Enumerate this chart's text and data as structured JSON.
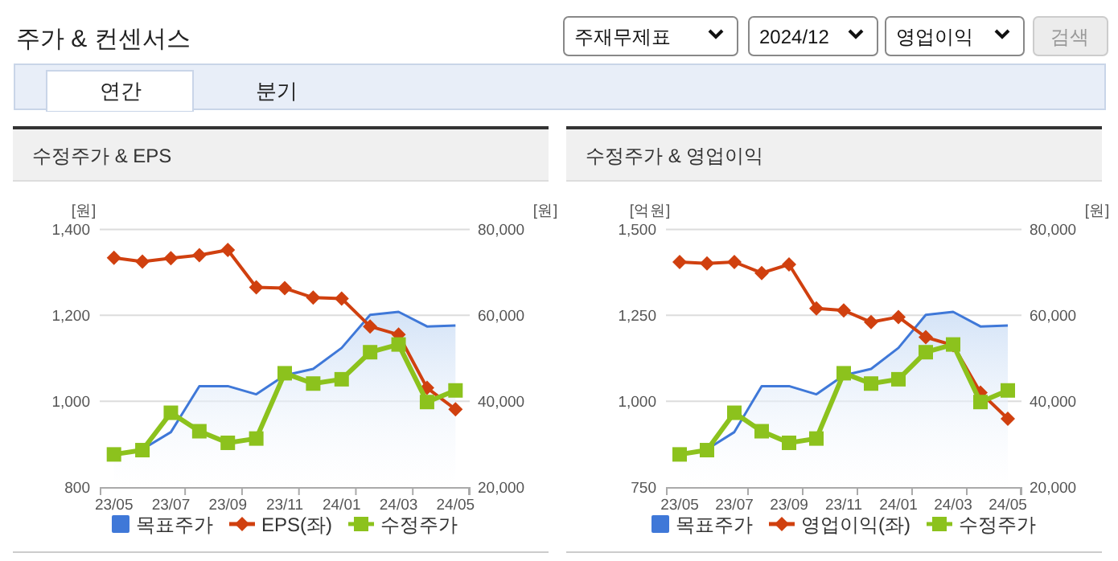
{
  "chart_data": [
    {
      "type": "other",
      "title": "주가 & 컨센서스",
      "annotations": [
        "주재무제표",
        "2024/12",
        "영업이익",
        "검색",
        "연간",
        "분기"
      ]
    },
    {
      "type": "line",
      "title": "수정주가 & EPS",
      "ylabel": "[원]",
      "y2label": "[원]",
      "categories": [
        "23/05",
        null,
        "23/07",
        null,
        "23/09",
        null,
        "23/11",
        null,
        "24/01",
        null,
        "24/03",
        null,
        "24/05"
      ],
      "ylim": [
        800,
        1400
      ],
      "yticks": [
        {
          "value": 800,
          "label": "800"
        },
        {
          "value": 1000,
          "label": "1,000"
        },
        {
          "value": 1200,
          "label": "1,200"
        },
        {
          "value": 1400,
          "label": "1,400"
        }
      ],
      "y2lim": [
        20000,
        80000
      ],
      "y2ticks": [
        {
          "value": 20000,
          "label": "20,000"
        },
        {
          "value": 40000,
          "label": "40,000"
        },
        {
          "value": 60000,
          "label": "60,000"
        },
        {
          "value": 80000,
          "label": "80,000"
        }
      ],
      "grid": "y",
      "legend": "bottom",
      "series": [
        {
          "name": "목표주가",
          "type": "area",
          "axis": "y2",
          "color": "#3f78d8",
          "marker": "none",
          "values": [
            27600,
            28800,
            32800,
            43500,
            43500,
            41600,
            46000,
            47500,
            52400,
            60100,
            60800,
            57400,
            57600
          ]
        },
        {
          "name": "EPS(좌)",
          "type": "line",
          "axis": "y",
          "color": "#d0400f",
          "marker": "diamond",
          "values": [
            1334,
            1325,
            1333,
            1340,
            1352,
            1265,
            1263,
            1241,
            1239,
            1174,
            1155,
            1031,
            981
          ]
        },
        {
          "name": "수정주가",
          "type": "line",
          "axis": "y2",
          "color": "#8cc21d",
          "marker": "square",
          "values": [
            27600,
            28600,
            37300,
            33000,
            30300,
            31300,
            46500,
            44100,
            45100,
            51400,
            53200,
            39800,
            42500
          ]
        }
      ]
    },
    {
      "type": "line",
      "title": "수정주가 & 영업이익",
      "ylabel": "[억원]",
      "y2label": "[원]",
      "categories": [
        "23/05",
        null,
        "23/07",
        null,
        "23/09",
        null,
        "23/11",
        null,
        "24/01",
        null,
        "24/03",
        null,
        "24/05"
      ],
      "ylim": [
        750,
        1500
      ],
      "yticks": [
        {
          "value": 750,
          "label": "750"
        },
        {
          "value": 1000,
          "label": "1,000"
        },
        {
          "value": 1250,
          "label": "1,250"
        },
        {
          "value": 1500,
          "label": "1,500"
        }
      ],
      "y2lim": [
        20000,
        80000
      ],
      "y2ticks": [
        {
          "value": 20000,
          "label": "20,000"
        },
        {
          "value": 40000,
          "label": "40,000"
        },
        {
          "value": 60000,
          "label": "60,000"
        },
        {
          "value": 80000,
          "label": "80,000"
        }
      ],
      "grid": "y",
      "legend": "bottom",
      "series": [
        {
          "name": "목표주가",
          "type": "area",
          "axis": "y2",
          "color": "#3f78d8",
          "marker": "none",
          "values": [
            27600,
            28800,
            32800,
            43500,
            43500,
            41600,
            46000,
            47500,
            52400,
            60100,
            60800,
            57400,
            57600
          ]
        },
        {
          "name": "영업이익(좌)",
          "type": "line",
          "axis": "y",
          "color": "#d0400f",
          "marker": "diamond",
          "values": [
            1405,
            1401,
            1405,
            1373,
            1398,
            1270,
            1264,
            1230,
            1245,
            1186,
            1163,
            1025,
            949
          ]
        },
        {
          "name": "수정주가",
          "type": "line",
          "axis": "y2",
          "color": "#8cc21d",
          "marker": "square",
          "values": [
            27600,
            28600,
            37300,
            33000,
            30300,
            31300,
            46500,
            44100,
            45100,
            51400,
            53200,
            39800,
            42500
          ]
        }
      ]
    }
  ]
}
